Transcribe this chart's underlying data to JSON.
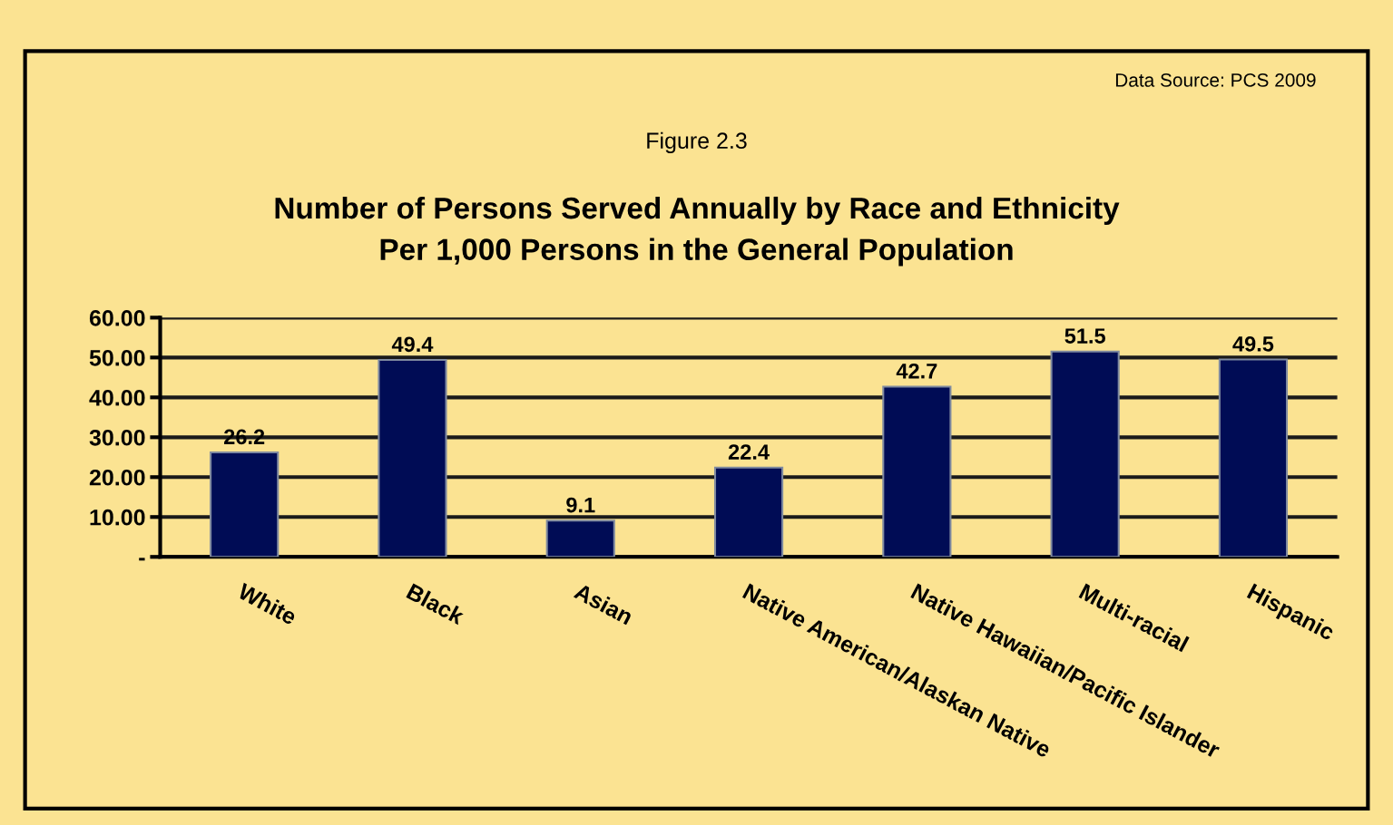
{
  "chart_data": {
    "type": "bar",
    "title": "Number of Persons Served Annually by Race and Ethnicity\nPer 1,000 Persons in the General Population",
    "subtitle": "Figure 2.3",
    "annotations": [
      "Data Source: PCS 2009"
    ],
    "categories": [
      "White",
      "Black",
      "Asian",
      "Native American/Alaskan Native",
      "Native Hawaiian/Pacific Islander",
      "Multi-racial",
      "Hispanic"
    ],
    "values": [
      26.2,
      49.4,
      9.1,
      22.4,
      42.7,
      51.5,
      49.5
    ],
    "color": "#000c55",
    "data_labels": true,
    "grid": "y",
    "ylim": [
      0,
      60
    ],
    "yticks": [
      {
        "value": 0,
        "label": "-"
      },
      {
        "value": 10,
        "label": "10.00"
      },
      {
        "value": 20,
        "label": "20.00"
      },
      {
        "value": 30,
        "label": "30.00"
      },
      {
        "value": 40,
        "label": "40.00"
      },
      {
        "value": 50,
        "label": "50.00"
      },
      {
        "value": 60,
        "label": "60.00"
      }
    ]
  }
}
